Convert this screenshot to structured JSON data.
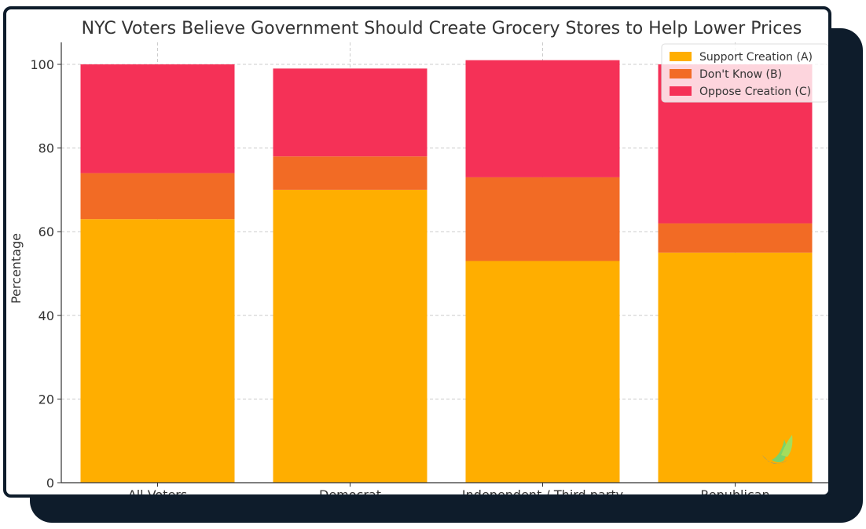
{
  "chart_data": {
    "type": "bar",
    "stacked": true,
    "title": "NYC Voters Believe Government Should Create Grocery Stores to Help Lower Prices",
    "xlabel": "",
    "ylabel": "Percentage",
    "ylim": [
      0,
      105
    ],
    "yticks": [
      0,
      20,
      40,
      60,
      80,
      100
    ],
    "grid": true,
    "legend_position": "top-right",
    "categories": [
      "All Voters",
      "Democrat",
      "Independent / Third party",
      "Republican"
    ],
    "series": [
      {
        "name": "Support Creation (A)",
        "color": "#ffae00",
        "values": [
          63,
          70,
          53,
          55
        ]
      },
      {
        "name": "Don't Know (B)",
        "color": "#f26b25",
        "values": [
          11,
          8,
          20,
          7
        ]
      },
      {
        "name": "Oppose Creation (C)",
        "color": "#f53157",
        "values": [
          26,
          21,
          28,
          38
        ]
      }
    ]
  }
}
